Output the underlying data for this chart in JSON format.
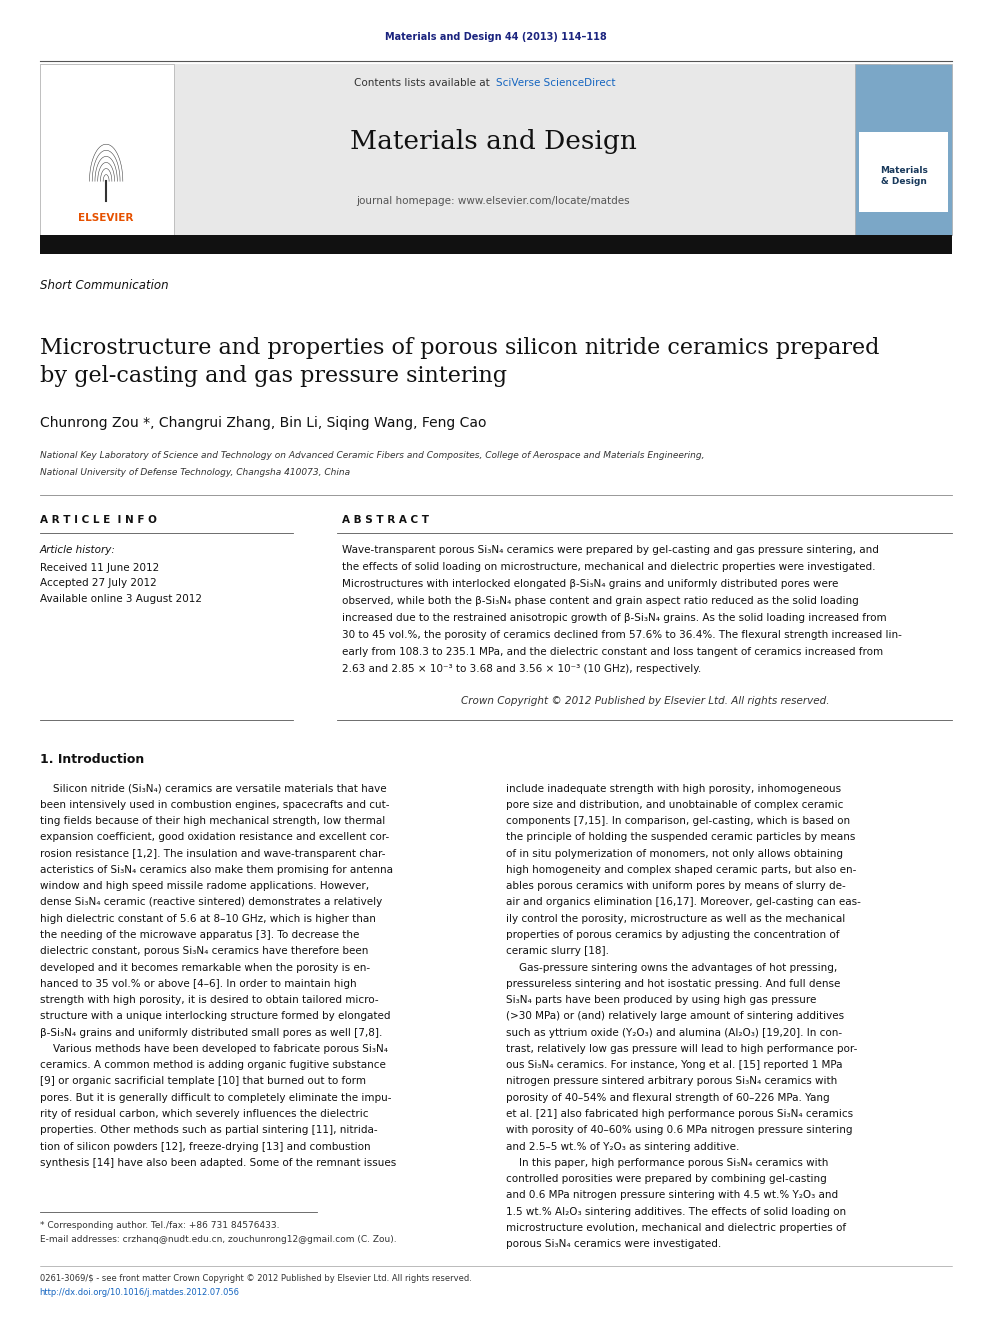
{
  "page_width": 9.92,
  "page_height": 13.23,
  "bg_color": "#ffffff",
  "journal_ref_color": "#1a237e",
  "journal_ref": "Materials and Design 44 (2013) 114–118",
  "header_bg": "#e8e8e8",
  "sciverse_color": "#1565c0",
  "journal_title": "Materials and Design",
  "journal_homepage": "journal homepage: www.elsevier.com/locate/matdes",
  "section_label": "Short Communication",
  "article_title": "Microstructure and properties of porous silicon nitride ceramics prepared\nby gel-casting and gas pressure sintering",
  "authors": "Chunrong Zou *, Changrui Zhang, Bin Li, Siqing Wang, Feng Cao",
  "affiliation1": "National Key Laboratory of Science and Technology on Advanced Ceramic Fibers and Composites, College of Aerospace and Materials Engineering,",
  "affiliation2": "National University of Defense Technology, Changsha 410073, China",
  "article_info_label": "A R T I C L E  I N F O",
  "abstract_label": "A B S T R A C T",
  "article_history_label": "Article history:",
  "received": "Received 11 June 2012",
  "accepted": "Accepted 27 July 2012",
  "available": "Available online 3 August 2012",
  "copyright": "Crown Copyright © 2012 Published by Elsevier Ltd. All rights reserved.",
  "intro_heading": "1. Introduction",
  "footnote1": "* Corresponding author. Tel./fax: +86 731 84576433.",
  "footnote2": "E-mail addresses: crzhanq@nudt.edu.cn, zouchunrong12@gmail.com (C. Zou).",
  "bottom_ref": "0261-3069/$ - see front matter Crown Copyright © 2012 Published by Elsevier Ltd. All rights reserved.",
  "bottom_doi": "http://dx.doi.org/10.1016/j.matdes.2012.07.056",
  "elsevier_orange": "#e65100",
  "link_blue": "#1565c0"
}
